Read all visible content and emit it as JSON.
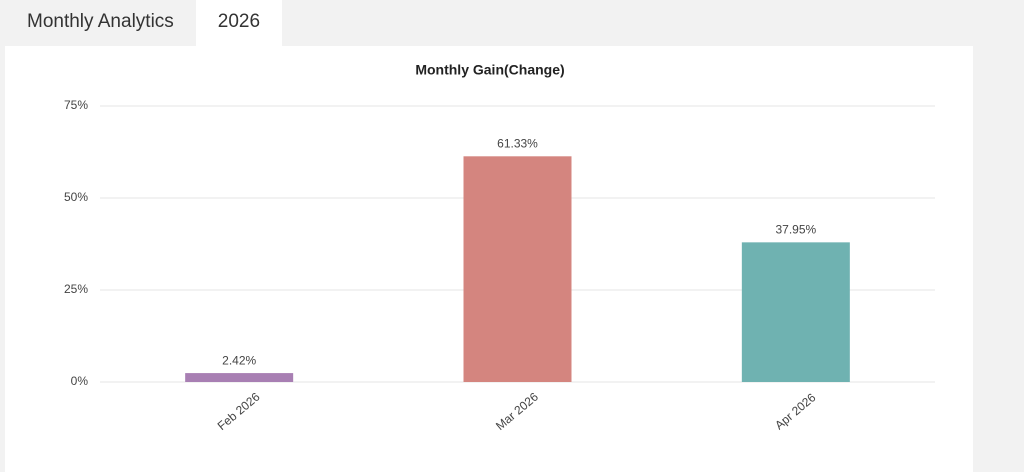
{
  "tabs": [
    "Monthly Analytics",
    "2026"
  ],
  "chart_data": {
    "type": "bar",
    "title": "Monthly Gain(Change)",
    "categories": [
      "Feb 2026",
      "Mar 2026",
      "Apr 2026"
    ],
    "values": [
      2.42,
      61.33,
      37.95
    ],
    "value_labels": [
      "2.42%",
      "61.33%",
      "37.95%"
    ],
    "colors": [
      "#a87fb3",
      "#d4857f",
      "#6fb2b1"
    ],
    "ylim": [
      0,
      75
    ],
    "yticks": [
      {
        "value": 0,
        "label": "0%"
      },
      {
        "value": 25,
        "label": "25%"
      },
      {
        "value": 50,
        "label": "50%"
      },
      {
        "value": 75,
        "label": "75%"
      }
    ],
    "grid": true
  }
}
